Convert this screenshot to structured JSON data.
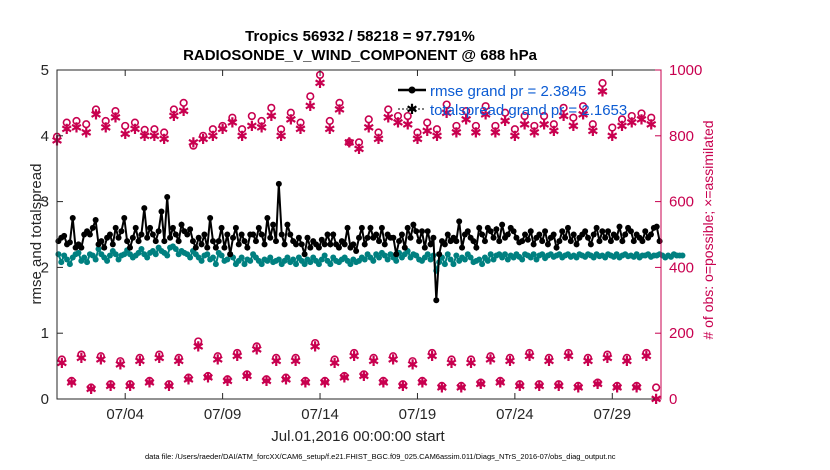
{
  "chart_data": {
    "type": "line",
    "title": "Tropics 56932 / 58218 = 97.791%",
    "subtitle": "RADIOSONDE_V_WIND_COMPONENT @ 688 hPa",
    "xlabel": "Jul.01,2016 00:00:00 start",
    "ylabel": "rmse and totalspread",
    "ylabel_right": "# of obs: o=possible; ×=assimilated",
    "xlim": [
      0,
      31
    ],
    "ylim": [
      0,
      5
    ],
    "ylim_right": [
      0,
      1000
    ],
    "x_ticks": [
      {
        "pos": 3.5,
        "label": "07/04"
      },
      {
        "pos": 8.5,
        "label": "07/09"
      },
      {
        "pos": 13.5,
        "label": "07/14"
      },
      {
        "pos": 18.5,
        "label": "07/19"
      },
      {
        "pos": 23.5,
        "label": "07/24"
      },
      {
        "pos": 28.5,
        "label": "07/29"
      }
    ],
    "y_ticks": [
      "0",
      "1",
      "2",
      "3",
      "4",
      "5"
    ],
    "y_ticks_right": [
      "0",
      "200",
      "400",
      "600",
      "800",
      "1000"
    ],
    "legend": {
      "placement": "top-right",
      "entries": [
        "rmse grand pr = 2.3845",
        "totalspread grand pr = 2.1653"
      ]
    },
    "colors": {
      "rmse": "#000000",
      "spread": "#008080",
      "obs": "#c8004f",
      "legend_text": "#0b5bd3"
    },
    "series": [
      {
        "name": "rmse",
        "values": [
          2.4,
          2.45,
          2.48,
          2.35,
          2.38,
          2.75,
          2.3,
          2.35,
          2.3,
          2.5,
          2.55,
          2.5,
          2.6,
          2.72,
          2.35,
          2.4,
          2.3,
          2.45,
          2.5,
          2.35,
          2.6,
          2.45,
          2.55,
          2.75,
          2.4,
          2.3,
          2.45,
          2.6,
          2.4,
          2.5,
          2.9,
          2.45,
          2.6,
          2.5,
          2.4,
          2.55,
          2.85,
          2.4,
          3.07,
          2.45,
          2.6,
          2.5,
          2.4,
          2.65,
          2.55,
          2.5,
          2.58,
          2.4,
          2.3,
          2.45,
          2.35,
          2.5,
          2.3,
          2.75,
          2.4,
          2.3,
          2.4,
          2.6,
          2.3,
          2.5,
          2.2,
          2.45,
          2.6,
          2.35,
          2.5,
          2.4,
          2.3,
          2.5,
          2.5,
          2.4,
          2.6,
          2.5,
          2.35,
          2.75,
          2.45,
          2.65,
          2.4,
          3.27,
          2.5,
          2.35,
          2.65,
          2.5,
          2.4,
          2.35,
          2.45,
          2.35,
          2.2,
          2.45,
          2.3,
          2.4,
          2.35,
          2.3,
          2.42,
          2.35,
          2.5,
          2.35,
          2.5,
          2.35,
          2.3,
          2.4,
          2.35,
          2.6,
          2.3,
          2.35,
          2.25,
          2.45,
          2.6,
          2.35,
          2.45,
          2.6,
          2.45,
          2.5,
          2.4,
          2.6,
          2.35,
          2.5,
          2.45,
          2.45,
          2.2,
          2.4,
          2.5,
          2.3,
          2.6,
          2.45,
          2.65,
          2.55,
          2.4,
          2.55,
          2.3,
          2.55,
          2.35,
          2.45,
          1.5,
          2.2,
          2.4,
          2.35,
          2.5,
          2.4,
          2.45,
          2.4,
          2.7,
          2.3,
          2.5,
          2.55,
          2.45,
          2.4,
          2.3,
          2.6,
          2.5,
          2.4,
          2.6,
          2.55,
          2.45,
          2.58,
          2.4,
          2.65,
          2.45,
          2.5,
          2.6,
          2.55,
          2.45,
          2.38,
          2.4,
          2.5,
          2.42,
          2.55,
          2.35,
          2.45,
          2.5,
          2.4,
          2.55,
          2.35,
          2.45,
          2.5,
          2.3,
          2.4,
          2.55,
          2.45,
          2.6,
          2.4,
          2.5,
          2.35,
          2.45,
          2.5,
          2.55,
          2.45,
          2.35,
          2.5,
          2.6,
          2.4,
          2.55,
          2.45,
          2.55,
          2.4,
          2.5,
          2.45,
          2.62,
          2.4,
          2.5,
          2.6,
          2.55,
          2.4,
          2.5,
          2.45,
          2.4,
          2.55,
          2.45,
          2.5,
          2.6,
          2.62,
          2.4
        ]
      },
      {
        "name": "totalspread",
        "values": [
          2.2,
          2.08,
          2.18,
          2.12,
          2.05,
          2.15,
          2.2,
          2.22,
          2.1,
          2.15,
          2.08,
          2.2,
          2.18,
          2.12,
          2.28,
          2.2,
          2.15,
          2.1,
          2.18,
          2.25,
          2.2,
          2.12,
          2.18,
          2.2,
          2.26,
          2.2,
          2.15,
          2.18,
          2.22,
          2.28,
          2.2,
          2.15,
          2.22,
          2.25,
          2.2,
          2.3,
          2.25,
          2.22,
          2.18,
          2.3,
          2.32,
          2.28,
          2.2,
          2.25,
          2.22,
          2.2,
          2.15,
          2.25,
          2.2,
          2.15,
          2.1,
          2.18,
          2.2,
          2.12,
          2.15,
          2.05,
          2.22,
          2.18,
          2.1,
          2.12,
          2.2,
          2.15,
          2.05,
          2.1,
          2.15,
          2.05,
          2.12,
          2.1,
          2.2,
          2.15,
          2.1,
          2.05,
          2.12,
          2.1,
          2.15,
          2.08,
          2.1,
          2.12,
          2.05,
          2.1,
          2.15,
          2.08,
          2.12,
          2.05,
          2.15,
          2.1,
          2.05,
          2.12,
          2.08,
          2.15,
          2.1,
          2.05,
          2.12,
          2.18,
          2.1,
          2.05,
          2.15,
          2.1,
          2.08,
          2.12,
          2.15,
          2.1,
          2.05,
          2.12,
          2.08,
          2.1,
          2.15,
          2.12,
          2.2,
          2.15,
          2.1,
          2.2,
          2.15,
          2.22,
          2.18,
          2.12,
          2.2,
          2.15,
          2.1,
          2.22,
          2.15,
          2.2,
          2.25,
          2.15,
          2.2,
          2.18,
          2.12,
          2.1,
          2.15,
          2.2,
          2.12,
          2.18,
          1.95,
          2.08,
          2.15,
          2.05,
          2.2,
          2.12,
          2.05,
          2.18,
          2.1,
          2.15,
          2.12,
          2.2,
          2.15,
          2.08,
          2.1,
          2.12,
          2.05,
          2.15,
          2.1,
          2.2,
          2.12,
          2.18,
          2.2,
          2.15,
          2.2,
          2.12,
          2.18,
          2.15,
          2.2,
          2.16,
          2.12,
          2.2,
          2.18,
          2.15,
          2.2,
          2.12,
          2.18,
          2.2,
          2.14,
          2.18,
          2.2,
          2.16,
          2.18,
          2.2,
          2.15,
          2.18,
          2.2,
          2.16,
          2.18,
          2.15,
          2.2,
          2.18,
          2.16,
          2.2,
          2.18,
          2.15,
          2.2,
          2.17,
          2.18,
          2.15,
          2.2,
          2.18,
          2.16,
          2.2,
          2.15,
          2.18,
          2.2,
          2.17,
          2.18,
          2.16,
          2.2,
          2.15,
          2.18,
          2.18,
          2.2,
          2.16,
          2.18,
          2.18,
          2.2,
          2.18,
          2.15,
          2.18,
          2.16,
          2.2,
          2.18,
          2.18,
          2.18
        ]
      },
      {
        "name": "obs possible (o), 00Z/12Z",
        "x": [
          0.0,
          0.5,
          1.0,
          1.5,
          2.0,
          2.5,
          3.0,
          3.5,
          4.0,
          4.5,
          5.0,
          5.5,
          6.0,
          6.5,
          7.0,
          7.5,
          8.0,
          8.5,
          9.0,
          9.5,
          10.0,
          10.5,
          11.0,
          11.5,
          12.0,
          12.5,
          13.0,
          13.5,
          14.0,
          14.5,
          15.0,
          15.5,
          16.0,
          16.5,
          17.0,
          17.5,
          18.0,
          18.5,
          19.0,
          19.5,
          20.0,
          20.5,
          21.0,
          21.5,
          22.0,
          22.5,
          23.0,
          23.5,
          24.0,
          24.5,
          25.0,
          25.5,
          26.0,
          26.5,
          27.0,
          27.5,
          28.0,
          28.5,
          29.0,
          29.5,
          30.0,
          30.5
        ],
        "values": [
          797,
          840,
          845,
          835,
          880,
          845,
          875,
          830,
          840,
          818,
          820,
          810,
          880,
          900,
          770,
          800,
          820,
          830,
          855,
          820,
          860,
          845,
          885,
          820,
          870,
          840,
          920,
          985,
          845,
          900,
          780,
          780,
          850,
          810,
          880,
          860,
          860,
          810,
          840,
          820,
          895,
          830,
          875,
          830,
          890,
          830,
          870,
          820,
          860,
          830,
          860,
          835,
          885,
          855,
          890,
          835,
          960,
          825,
          850,
          860,
          868,
          855
        ]
      },
      {
        "name": "obs assimilated (×), 00Z/12Z",
        "x": [
          0.0,
          0.5,
          1.0,
          1.5,
          2.0,
          2.5,
          3.0,
          3.5,
          4.0,
          4.5,
          5.0,
          5.5,
          6.0,
          6.5,
          7.0,
          7.5,
          8.0,
          8.5,
          9.0,
          9.5,
          10.0,
          10.5,
          11.0,
          11.5,
          12.0,
          12.5,
          13.0,
          13.5,
          14.0,
          14.5,
          15.0,
          15.5,
          16.0,
          16.5,
          17.0,
          17.5,
          18.0,
          18.5,
          19.0,
          19.5,
          20.0,
          20.5,
          21.0,
          21.5,
          22.0,
          22.5,
          23.0,
          23.5,
          24.0,
          24.5,
          25.0,
          25.5,
          26.0,
          26.5,
          27.0,
          27.5,
          28.0,
          28.5,
          29.0,
          29.5,
          30.0,
          30.5
        ],
        "values": [
          785,
          820,
          825,
          810,
          865,
          825,
          855,
          805,
          820,
          800,
          800,
          790,
          860,
          875,
          780,
          790,
          800,
          820,
          840,
          800,
          830,
          825,
          860,
          800,
          850,
          820,
          890,
          960,
          820,
          880,
          780,
          760,
          825,
          790,
          855,
          840,
          835,
          790,
          815,
          800,
          870,
          810,
          850,
          810,
          865,
          810,
          845,
          800,
          835,
          810,
          835,
          815,
          860,
          830,
          865,
          815,
          935,
          800,
          830,
          840,
          850,
          835
        ]
      },
      {
        "name": "obs possible (o), 06Z/18Z",
        "x": [
          0.25,
          0.75,
          1.25,
          1.75,
          2.25,
          2.75,
          3.25,
          3.75,
          4.25,
          4.75,
          5.25,
          5.75,
          6.25,
          6.75,
          7.25,
          7.75,
          8.25,
          8.75,
          9.25,
          9.75,
          10.25,
          10.75,
          11.25,
          11.75,
          12.25,
          12.75,
          13.25,
          13.75,
          14.25,
          14.75,
          15.25,
          15.75,
          16.25,
          16.75,
          17.25,
          17.75,
          18.25,
          18.75,
          19.25,
          19.75,
          20.25,
          20.75,
          21.25,
          21.75,
          22.25,
          22.75,
          23.25,
          23.75,
          24.25,
          24.75,
          25.25,
          25.75,
          26.25,
          26.75,
          27.25,
          27.75,
          28.25,
          28.75,
          29.25,
          29.75,
          30.25,
          30.75
        ],
        "values": [
          120,
          55,
          135,
          35,
          130,
          45,
          115,
          45,
          125,
          55,
          135,
          45,
          125,
          65,
          175,
          70,
          130,
          60,
          140,
          75,
          160,
          60,
          125,
          65,
          125,
          55,
          170,
          55,
          120,
          70,
          140,
          75,
          125,
          55,
          130,
          45,
          115,
          55,
          140,
          40,
          120,
          40,
          120,
          50,
          130,
          55,
          125,
          45,
          140,
          45,
          125,
          45,
          140,
          40,
          125,
          50,
          135,
          40,
          125,
          40,
          140,
          35
        ]
      },
      {
        "name": "obs assimilated (×), 06Z/18Z",
        "x": [
          0.25,
          0.75,
          1.25,
          1.75,
          2.25,
          2.75,
          3.25,
          3.75,
          4.25,
          4.75,
          5.25,
          5.75,
          6.25,
          6.75,
          7.25,
          7.75,
          8.25,
          8.75,
          9.25,
          9.75,
          10.25,
          10.75,
          11.25,
          11.75,
          12.25,
          12.75,
          13.25,
          13.75,
          14.25,
          14.75,
          15.25,
          15.75,
          16.25,
          16.75,
          17.25,
          17.75,
          18.25,
          18.75,
          19.25,
          19.75,
          20.25,
          20.75,
          21.25,
          21.75,
          22.25,
          22.75,
          23.25,
          23.75,
          24.25,
          24.75,
          25.25,
          25.75,
          26.25,
          26.75,
          27.25,
          27.75,
          28.25,
          28.75,
          29.25,
          29.75,
          30.25,
          30.75
        ],
        "values": [
          110,
          50,
          125,
          30,
          120,
          40,
          105,
          40,
          115,
          50,
          125,
          40,
          115,
          60,
          160,
          65,
          120,
          55,
          130,
          70,
          150,
          55,
          115,
          60,
          115,
          50,
          160,
          50,
          110,
          65,
          130,
          70,
          115,
          50,
          120,
          40,
          105,
          50,
          130,
          35,
          110,
          35,
          110,
          45,
          120,
          50,
          115,
          40,
          130,
          40,
          115,
          40,
          130,
          35,
          115,
          45,
          125,
          35,
          115,
          35,
          130,
          0
        ]
      }
    ]
  },
  "footer": {
    "data_file": "data file: /Users/raeder/DAI/ATM_forcXX/CAM6_setup/f.e21.FHIST_BGC.f09_025.CAM6assim.011/Diags_NTrS_2016-07/obs_diag_output.nc"
  }
}
